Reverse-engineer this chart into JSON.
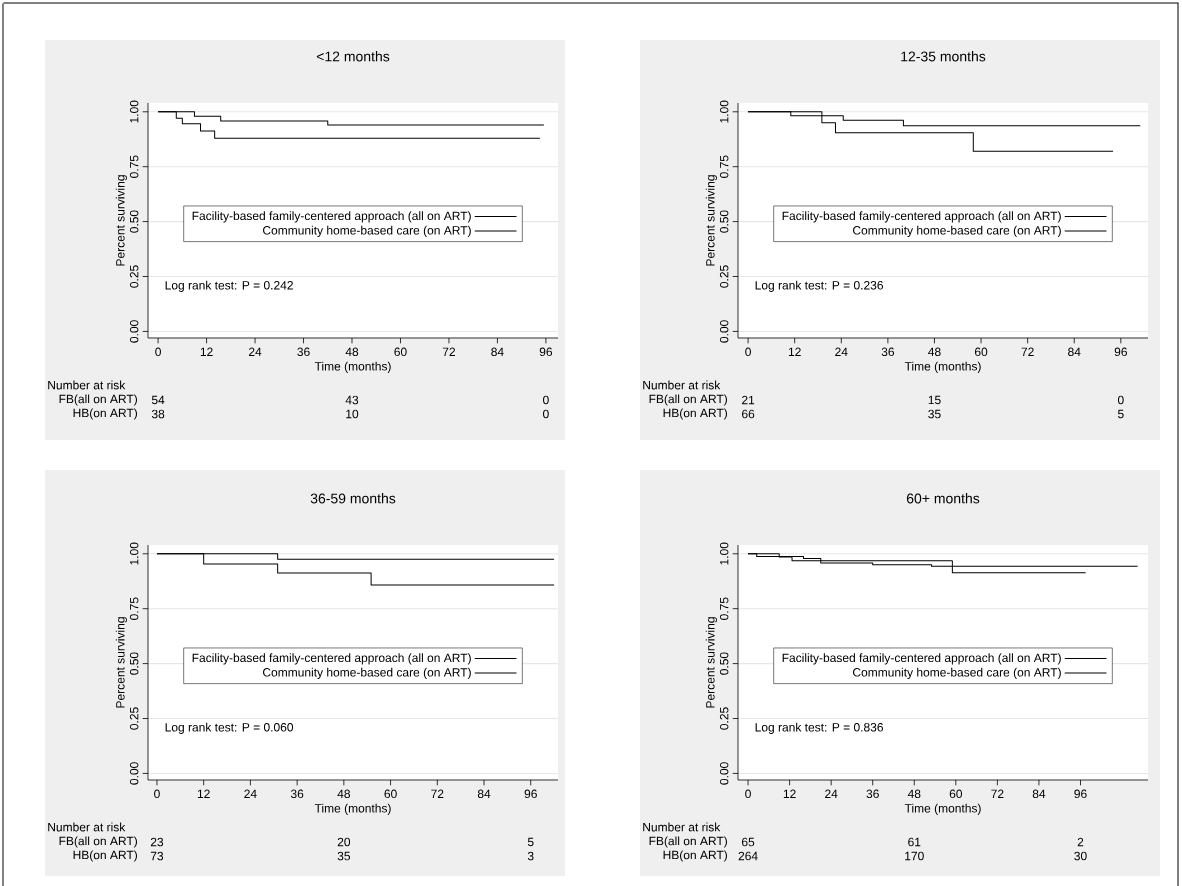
{
  "chart_data": [
    {
      "type": "step",
      "title": "<12 months",
      "xlabel": "Time (months)",
      "ylabel": "Percent surviving",
      "xlim": [
        -2.5,
        99
      ],
      "ylim": [
        -0.03,
        1.04
      ],
      "xticks": [
        0,
        12,
        24,
        36,
        48,
        60,
        72,
        84,
        96
      ],
      "yticks": [
        {
          "value": 0,
          "label": "0.00"
        },
        {
          "value": 0.25,
          "label": "0.25"
        },
        {
          "value": 0.5,
          "label": "0.50"
        },
        {
          "value": 0.75,
          "label": "0.75"
        },
        {
          "value": 1,
          "label": "1.00"
        }
      ],
      "grid": "y",
      "legend": "center",
      "line_style": "solid",
      "series": [
        {
          "name": "Facility-based family-centered approach (all on ART)",
          "color": "#000000",
          "x": [
            0,
            9,
            15.5,
            42,
            95.5
          ],
          "values": [
            1,
            0.98,
            0.958,
            0.94,
            0.94
          ]
        },
        {
          "name": "Community home-based care (on ART)",
          "color": "#000000",
          "x": [
            0,
            4.5,
            6,
            10.5,
            14,
            94.5
          ],
          "values": [
            1,
            0.97,
            0.945,
            0.912,
            0.88,
            0.88
          ]
        }
      ],
      "annotations": [
        "Log rank test: P = 0.242",
        "Number at risk",
        "FB(all on ART)",
        "54",
        "43",
        "0",
        "HB(on ART)",
        "38",
        "10",
        "0"
      ]
    },
    {
      "type": "step",
      "title": "12-35 months",
      "xlabel": "Time (months)",
      "ylabel": "Percent surviving",
      "xlim": [
        -2.6,
        103
      ],
      "ylim": [
        -0.03,
        1.04
      ],
      "xticks": [
        0,
        12,
        24,
        36,
        48,
        60,
        72,
        84,
        96
      ],
      "yticks": [
        {
          "value": 0,
          "label": "0.00"
        },
        {
          "value": 0.25,
          "label": "0.25"
        },
        {
          "value": 0.5,
          "label": "0.50"
        },
        {
          "value": 0.75,
          "label": "0.75"
        },
        {
          "value": 1,
          "label": "1.00"
        }
      ],
      "grid": "y",
      "legend": "center",
      "line_style": "solid",
      "series": [
        {
          "name": "Facility-based family-centered approach (all on ART)",
          "color": "#000000",
          "x": [
            0,
            19,
            22.5,
            58,
            94
          ],
          "values": [
            1,
            0.95,
            0.905,
            0.82,
            0.82
          ]
        },
        {
          "name": "Community home-based care (on ART)",
          "color": "#000000",
          "x": [
            0,
            11,
            24.5,
            40,
            101
          ],
          "values": [
            1,
            0.982,
            0.962,
            0.936,
            0.936
          ]
        }
      ],
      "annotations": [
        "Log rank test: P = 0.236",
        "Number at risk",
        "FB(all on ART)",
        "21",
        "15",
        "0",
        "HB(on ART)",
        "66",
        "35",
        "5"
      ]
    },
    {
      "type": "step",
      "title": "36-59 months",
      "xlabel": "Time (months)",
      "ylabel": "Percent surviving",
      "xlim": [
        -2.3,
        103
      ],
      "ylim": [
        -0.03,
        1.04
      ],
      "xticks": [
        0,
        12,
        24,
        36,
        48,
        60,
        72,
        84,
        96
      ],
      "yticks": [
        {
          "value": 0,
          "label": "0.00"
        },
        {
          "value": 0.25,
          "label": "0.25"
        },
        {
          "value": 0.5,
          "label": "0.50"
        },
        {
          "value": 0.75,
          "label": "0.75"
        },
        {
          "value": 1,
          "label": "1.00"
        }
      ],
      "grid": "y",
      "legend": "center",
      "line_style": "solid",
      "series": [
        {
          "name": "Facility-based family-centered approach (all on ART)",
          "color": "#000000",
          "x": [
            0,
            31,
            102
          ],
          "values": [
            1,
            0.975,
            0.975
          ]
        },
        {
          "name": "Community home-based care (on ART)",
          "color": "#000000",
          "x": [
            0,
            12,
            31,
            55,
            102
          ],
          "values": [
            1,
            0.953,
            0.913,
            0.858,
            0.858
          ]
        }
      ],
      "annotations": [
        "Log rank test: P = 0.060",
        "Number at risk",
        "FB(all on ART)",
        "23",
        "20",
        "5",
        "HB(on ART)",
        "73",
        "35",
        "3"
      ]
    },
    {
      "type": "step",
      "title": "60+ months",
      "xlabel": "Time (months)",
      "ylabel": "Percent surviving",
      "xlim": [
        -2.9,
        115.5
      ],
      "ylim": [
        -0.03,
        1.04
      ],
      "xticks": [
        0,
        12,
        24,
        36,
        48,
        60,
        72,
        84,
        96
      ],
      "yticks": [
        {
          "value": 0,
          "label": "0.00"
        },
        {
          "value": 0.25,
          "label": "0.25"
        },
        {
          "value": 0.5,
          "label": "0.50"
        },
        {
          "value": 0.75,
          "label": "0.75"
        },
        {
          "value": 1,
          "label": "1.00"
        }
      ],
      "grid": "y",
      "legend": "center",
      "line_style": "solid",
      "series": [
        {
          "name": "Facility-based family-centered approach (all on ART)",
          "color": "#000000",
          "x": [
            0,
            9,
            12.7,
            59,
            97.5
          ],
          "values": [
            1,
            0.985,
            0.968,
            0.914,
            0.914
          ]
        },
        {
          "name": "Community home-based care (on ART)",
          "color": "#000000",
          "x": [
            0,
            2.5,
            16,
            21,
            36,
            53,
            112.5
          ],
          "values": [
            1,
            0.988,
            0.979,
            0.958,
            0.95,
            0.943,
            0.943
          ]
        }
      ],
      "annotations": [
        "Log rank test: P = 0.836",
        "Number at risk",
        "FB(all on ART)",
        "65",
        "61",
        "2",
        "HB(on ART)",
        "264",
        "170",
        "30"
      ]
    }
  ]
}
